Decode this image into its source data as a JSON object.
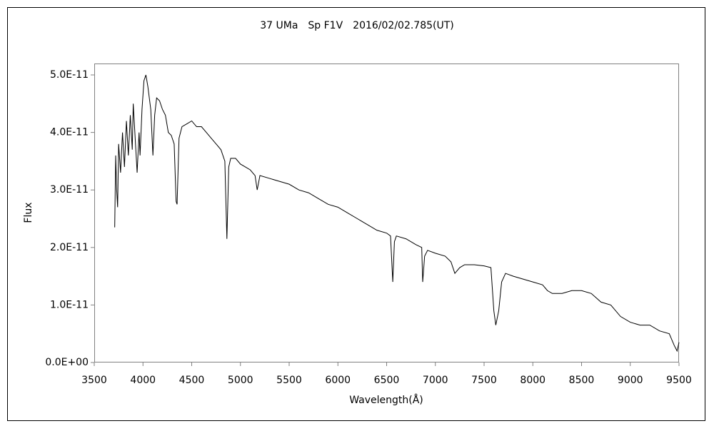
{
  "chart_data": {
    "type": "line",
    "title": "37 UMa　Sp F1V　2016/02/02.785(UT)",
    "xlabel": "Wavelength(Å)",
    "ylabel": "Flux",
    "xlim": [
      3500,
      9500
    ],
    "xticks": [
      3500,
      4000,
      4500,
      5000,
      5500,
      6000,
      6500,
      7000,
      7500,
      8000,
      8500,
      9000,
      9500
    ],
    "ylim": [
      0,
      5e-11
    ],
    "yticks": [
      {
        "value": 0,
        "label": "0.0E+00"
      },
      {
        "value": 1e-11,
        "label": "1.0E-11"
      },
      {
        "value": 2e-11,
        "label": "2.0E-11"
      },
      {
        "value": 3e-11,
        "label": "3.0E-11"
      },
      {
        "value": 4e-11,
        "label": "4.0E-11"
      },
      {
        "value": 5e-11,
        "label": "5.0E-11"
      }
    ],
    "grid": false,
    "series": [
      {
        "color": "#000000",
        "x": [
          3710,
          3720,
          3730,
          3740,
          3750,
          3770,
          3790,
          3810,
          3830,
          3850,
          3870,
          3890,
          3900,
          3920,
          3940,
          3960,
          3970,
          3990,
          4010,
          4030,
          4050,
          4080,
          4102,
          4120,
          4140,
          4170,
          4200,
          4230,
          4260,
          4290,
          4320,
          4340,
          4350,
          4370,
          4400,
          4450,
          4500,
          4550,
          4600,
          4650,
          4700,
          4750,
          4800,
          4840,
          4861,
          4880,
          4900,
          4950,
          5000,
          5050,
          5100,
          5150,
          5172,
          5200,
          5300,
          5400,
          5500,
          5600,
          5700,
          5800,
          5900,
          6000,
          6100,
          6200,
          6300,
          6400,
          6500,
          6540,
          6563,
          6580,
          6600,
          6700,
          6800,
          6860,
          6870,
          6890,
          6920,
          7000,
          7100,
          7160,
          7200,
          7250,
          7300,
          7400,
          7500,
          7570,
          7600,
          7620,
          7650,
          7680,
          7720,
          7800,
          7900,
          8000,
          8100,
          8150,
          8200,
          8300,
          8400,
          8500,
          8600,
          8700,
          8800,
          8900,
          9000,
          9100,
          9200,
          9300,
          9400,
          9450,
          9480,
          9500
        ],
        "values": [
          2.35e-11,
          3.6e-11,
          3e-11,
          2.7e-11,
          3.8e-11,
          3.3e-11,
          4e-11,
          3.4e-11,
          4.2e-11,
          3.6e-11,
          4.3e-11,
          3.7e-11,
          4.5e-11,
          3.9e-11,
          3.3e-11,
          4e-11,
          3.6e-11,
          4.4e-11,
          4.9e-11,
          5e-11,
          4.8e-11,
          4.4e-11,
          3.6e-11,
          4.3e-11,
          4.6e-11,
          4.55e-11,
          4.4e-11,
          4.3e-11,
          4e-11,
          3.95e-11,
          3.8e-11,
          2.8e-11,
          2.75e-11,
          3.9e-11,
          4.1e-11,
          4.15e-11,
          4.2e-11,
          4.1e-11,
          4.1e-11,
          4e-11,
          3.9e-11,
          3.8e-11,
          3.7e-11,
          3.5e-11,
          2.15e-11,
          3.4e-11,
          3.55e-11,
          3.55e-11,
          3.45e-11,
          3.4e-11,
          3.35e-11,
          3.25e-11,
          3e-11,
          3.25e-11,
          3.2e-11,
          3.15e-11,
          3.1e-11,
          3e-11,
          2.95e-11,
          2.85e-11,
          2.75e-11,
          2.7e-11,
          2.6e-11,
          2.5e-11,
          2.4e-11,
          2.3e-11,
          2.25e-11,
          2.2e-11,
          1.4e-11,
          2.1e-11,
          2.2e-11,
          2.15e-11,
          2.05e-11,
          2e-11,
          1.4e-11,
          1.85e-11,
          1.95e-11,
          1.9e-11,
          1.85e-11,
          1.75e-11,
          1.55e-11,
          1.65e-11,
          1.7e-11,
          1.7e-11,
          1.68e-11,
          1.65e-11,
          9e-12,
          6.5e-12,
          9e-12,
          1.4e-11,
          1.55e-11,
          1.5e-11,
          1.45e-11,
          1.4e-11,
          1.35e-11,
          1.25e-11,
          1.2e-11,
          1.2e-11,
          1.25e-11,
          1.25e-11,
          1.2e-11,
          1.05e-11,
          1e-11,
          8e-12,
          7e-12,
          6.5e-12,
          6.5e-12,
          5.5e-12,
          5e-12,
          3e-12,
          2e-12,
          3.5e-12
        ]
      }
    ]
  }
}
